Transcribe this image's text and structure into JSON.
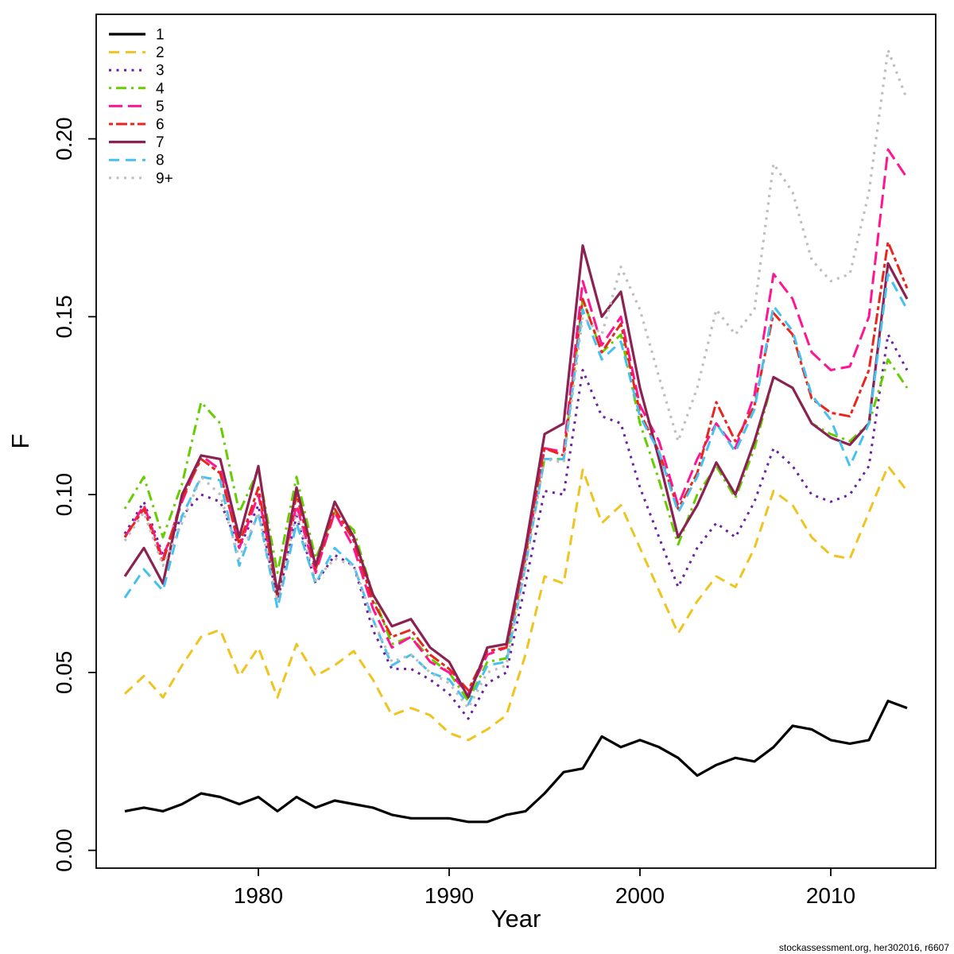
{
  "window": {
    "background": "#ffffff"
  },
  "footer": {
    "credit": "stockassessment.org, her302016, r6607",
    "color": "#00008B"
  },
  "chart_data": {
    "type": "line",
    "title": "",
    "xlabel": "Year",
    "ylabel": "F",
    "grid": false,
    "legend_position": "top-left",
    "xlim": [
      1971.5,
      2015.5
    ],
    "ylim": [
      -0.005,
      0.235
    ],
    "x_ticks": [
      1980,
      1990,
      2000,
      2010
    ],
    "y_ticks": [
      0.0,
      0.05,
      0.1,
      0.15,
      0.2
    ],
    "x": [
      1973,
      1974,
      1975,
      1976,
      1977,
      1978,
      1979,
      1980,
      1981,
      1982,
      1983,
      1984,
      1985,
      1986,
      1987,
      1988,
      1989,
      1990,
      1991,
      1992,
      1993,
      1994,
      1995,
      1996,
      1997,
      1998,
      1999,
      2000,
      2001,
      2002,
      2003,
      2004,
      2005,
      2006,
      2007,
      2008,
      2009,
      2010,
      2011,
      2012,
      2013,
      2014
    ],
    "series": [
      {
        "name": "1",
        "color": "#000000",
        "linetype": "solid",
        "width": 3.2,
        "values": [
          0.011,
          0.012,
          0.011,
          0.013,
          0.016,
          0.015,
          0.013,
          0.015,
          0.011,
          0.015,
          0.012,
          0.014,
          0.013,
          0.012,
          0.01,
          0.009,
          0.009,
          0.009,
          0.008,
          0.008,
          0.01,
          0.011,
          0.016,
          0.022,
          0.023,
          0.032,
          0.029,
          0.031,
          0.029,
          0.026,
          0.021,
          0.024,
          0.026,
          0.025,
          0.029,
          0.035,
          0.034,
          0.031,
          0.03,
          0.031,
          0.042,
          0.04
        ]
      },
      {
        "name": "2",
        "color": "#F0C420",
        "linetype": "dashed",
        "width": 3,
        "values": [
          0.044,
          0.049,
          0.043,
          0.052,
          0.06,
          0.062,
          0.049,
          0.057,
          0.043,
          0.058,
          0.049,
          0.052,
          0.056,
          0.048,
          0.038,
          0.04,
          0.038,
          0.033,
          0.031,
          0.034,
          0.038,
          0.055,
          0.077,
          0.075,
          0.107,
          0.092,
          0.097,
          0.085,
          0.073,
          0.061,
          0.07,
          0.077,
          0.074,
          0.085,
          0.101,
          0.097,
          0.088,
          0.083,
          0.082,
          0.095,
          0.108,
          0.101
        ]
      },
      {
        "name": "3",
        "color": "#6B1FA3",
        "linetype": "dotted",
        "width": 3,
        "values": [
          0.089,
          0.098,
          0.083,
          0.094,
          0.1,
          0.098,
          0.085,
          0.097,
          0.07,
          0.094,
          0.075,
          0.083,
          0.08,
          0.062,
          0.051,
          0.051,
          0.048,
          0.044,
          0.037,
          0.047,
          0.05,
          0.075,
          0.101,
          0.1,
          0.135,
          0.122,
          0.12,
          0.102,
          0.088,
          0.074,
          0.085,
          0.092,
          0.088,
          0.098,
          0.113,
          0.108,
          0.1,
          0.098,
          0.1,
          0.108,
          0.145,
          0.135
        ]
      },
      {
        "name": "4",
        "color": "#66CD00",
        "linetype": "dotdash",
        "width": 3,
        "values": [
          0.096,
          0.105,
          0.088,
          0.103,
          0.126,
          0.12,
          0.095,
          0.107,
          0.078,
          0.105,
          0.082,
          0.095,
          0.09,
          0.072,
          0.058,
          0.06,
          0.054,
          0.05,
          0.042,
          0.053,
          0.054,
          0.082,
          0.11,
          0.11,
          0.155,
          0.14,
          0.145,
          0.12,
          0.104,
          0.086,
          0.1,
          0.108,
          0.099,
          0.113,
          0.133,
          0.13,
          0.12,
          0.117,
          0.115,
          0.12,
          0.138,
          0.13
        ]
      },
      {
        "name": "5",
        "color": "#FF1493",
        "linetype": "longdash",
        "width": 3,
        "values": [
          0.088,
          0.097,
          0.082,
          0.098,
          0.111,
          0.107,
          0.085,
          0.1,
          0.073,
          0.097,
          0.078,
          0.095,
          0.085,
          0.068,
          0.057,
          0.06,
          0.053,
          0.05,
          0.044,
          0.055,
          0.057,
          0.082,
          0.113,
          0.112,
          0.16,
          0.142,
          0.15,
          0.125,
          0.115,
          0.097,
          0.11,
          0.12,
          0.113,
          0.128,
          0.162,
          0.155,
          0.14,
          0.135,
          0.136,
          0.15,
          0.197,
          0.189
        ]
      },
      {
        "name": "6",
        "color": "#E8261E",
        "linetype": "twodash",
        "width": 3,
        "values": [
          0.088,
          0.096,
          0.081,
          0.099,
          0.11,
          0.106,
          0.086,
          0.102,
          0.071,
          0.1,
          0.079,
          0.096,
          0.087,
          0.07,
          0.06,
          0.062,
          0.055,
          0.051,
          0.045,
          0.056,
          0.057,
          0.083,
          0.113,
          0.111,
          0.155,
          0.14,
          0.148,
          0.123,
          0.112,
          0.096,
          0.106,
          0.126,
          0.115,
          0.125,
          0.151,
          0.145,
          0.127,
          0.123,
          0.122,
          0.135,
          0.171,
          0.158
        ]
      },
      {
        "name": "7",
        "color": "#8B2252",
        "linetype": "solid",
        "width": 3.2,
        "values": [
          0.077,
          0.085,
          0.075,
          0.1,
          0.111,
          0.11,
          0.088,
          0.108,
          0.072,
          0.102,
          0.08,
          0.098,
          0.088,
          0.072,
          0.063,
          0.065,
          0.057,
          0.053,
          0.043,
          0.057,
          0.058,
          0.085,
          0.117,
          0.12,
          0.17,
          0.15,
          0.157,
          0.13,
          0.11,
          0.088,
          0.097,
          0.109,
          0.1,
          0.115,
          0.133,
          0.13,
          0.12,
          0.116,
          0.114,
          0.12,
          0.165,
          0.155
        ]
      },
      {
        "name": "8",
        "color": "#45C1F0",
        "linetype": "dashed",
        "width": 3,
        "values": [
          0.071,
          0.079,
          0.073,
          0.094,
          0.105,
          0.104,
          0.08,
          0.095,
          0.068,
          0.092,
          0.075,
          0.085,
          0.08,
          0.065,
          0.052,
          0.055,
          0.05,
          0.048,
          0.041,
          0.052,
          0.053,
          0.08,
          0.11,
          0.11,
          0.152,
          0.138,
          0.143,
          0.122,
          0.112,
          0.095,
          0.105,
          0.12,
          0.112,
          0.124,
          0.153,
          0.146,
          0.128,
          0.121,
          0.108,
          0.12,
          0.162,
          0.152
        ]
      },
      {
        "name": "9+",
        "color": "#BEBEBE",
        "linetype": "dotted",
        "width": 3.2,
        "values": [
          0.087,
          0.095,
          0.08,
          0.092,
          0.105,
          0.1,
          0.082,
          0.095,
          0.07,
          0.095,
          0.076,
          0.082,
          0.08,
          0.065,
          0.053,
          0.055,
          0.05,
          0.047,
          0.04,
          0.05,
          0.052,
          0.08,
          0.11,
          0.109,
          0.15,
          0.145,
          0.164,
          0.152,
          0.133,
          0.115,
          0.13,
          0.152,
          0.145,
          0.152,
          0.193,
          0.185,
          0.166,
          0.16,
          0.162,
          0.185,
          0.225,
          0.211
        ]
      }
    ]
  }
}
